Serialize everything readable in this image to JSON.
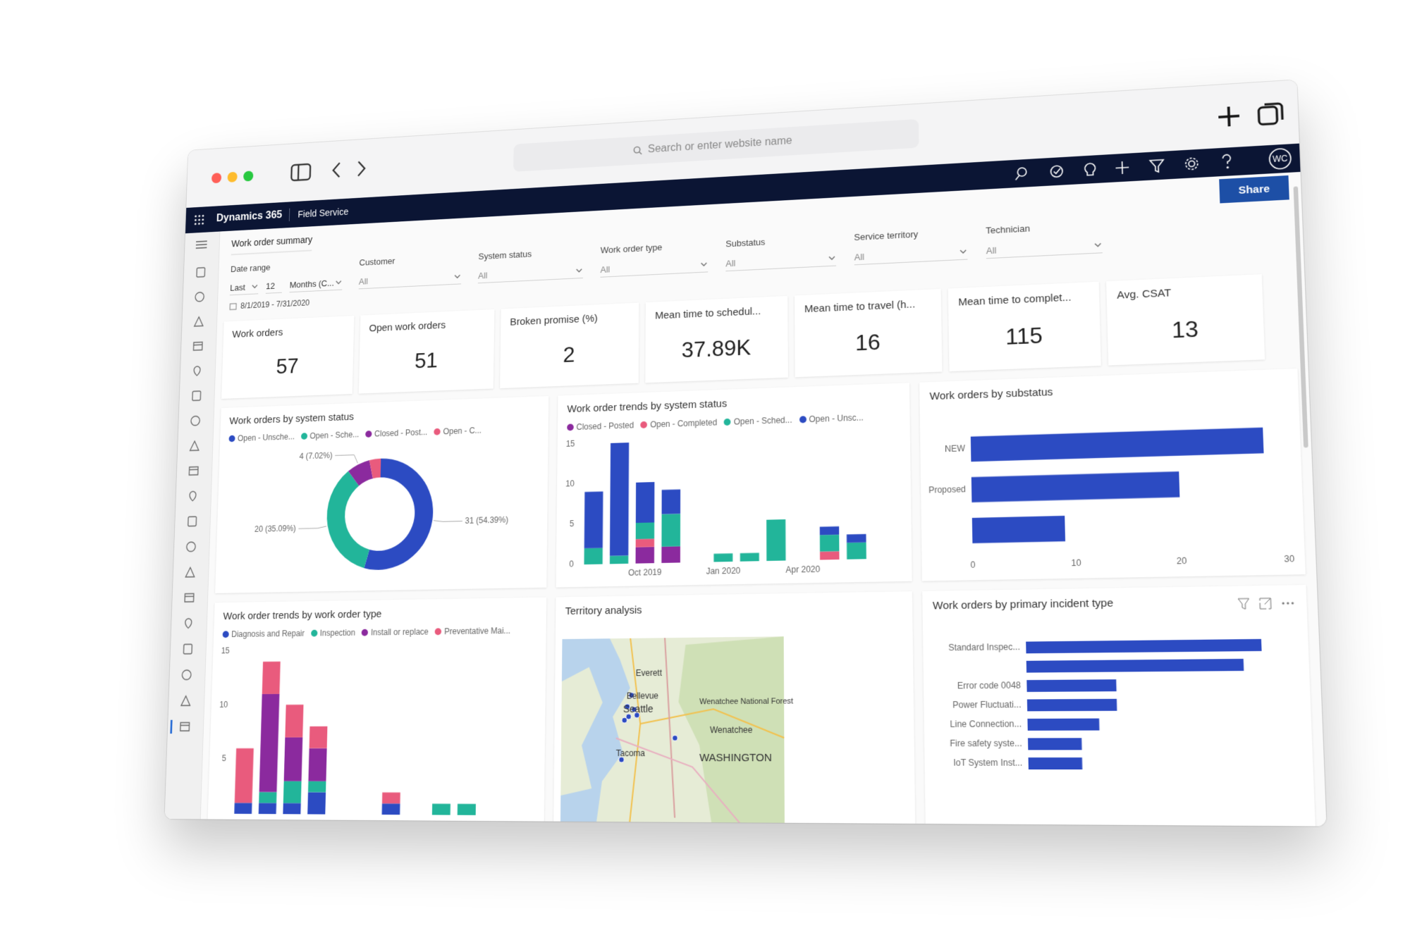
{
  "browser": {
    "search_placeholder": "Search or enter website name"
  },
  "app": {
    "brand": "Dynamics 365",
    "module": "Field Service",
    "user_initials": "WC",
    "share": "Share"
  },
  "page": {
    "tab": "Work order summary"
  },
  "filters": {
    "date_range": {
      "label": "Date range",
      "mode": "Last",
      "count": 12,
      "unit": "Months (C...",
      "range": "8/1/2019 - 7/31/2020"
    },
    "dropdowns": [
      {
        "label": "Customer",
        "value": "All"
      },
      {
        "label": "System status",
        "value": "All"
      },
      {
        "label": "Work order type",
        "value": "All"
      },
      {
        "label": "Substatus",
        "value": "All"
      },
      {
        "label": "Service territory",
        "value": "All"
      },
      {
        "label": "Technician",
        "value": "All"
      }
    ]
  },
  "kpis": [
    {
      "label": "Work orders",
      "value": 57
    },
    {
      "label": "Open work orders",
      "value": 51
    },
    {
      "label": "Broken promise (%)",
      "value": 2
    },
    {
      "label": "Mean time to schedul...",
      "value": "37.89K"
    },
    {
      "label": "Mean time to travel (h...",
      "value": 16
    },
    {
      "label": "Mean time to complet...",
      "value": 115
    },
    {
      "label": "Avg. CSAT",
      "value": 13
    }
  ],
  "charts": [
    {
      "type": "donut",
      "title": "Work orders by system status",
      "categories": [
        "Open - Unsche...",
        "Open - Sche...",
        "Closed - Post...",
        "Open - C..."
      ],
      "colors": [
        "#2c4bc2",
        "#22b59a",
        "#8b2a9e",
        "#e95b7d"
      ],
      "values": [
        31,
        20,
        4,
        2
      ],
      "value_labels": [
        "31 (54.39%)",
        "20 (35.09%)",
        "4 (7.02%)",
        null
      ]
    },
    {
      "type": "stacked_bar",
      "title": "Work order trends by system status",
      "categories": [
        null,
        null,
        "Oct 2019",
        null,
        null,
        "Jan 2020",
        null,
        null,
        "Apr 2020",
        null,
        null,
        null
      ],
      "series": [
        {
          "name": "Closed - Posted",
          "color": "#8b2a9e",
          "values": [
            0,
            0,
            2,
            2,
            0,
            0,
            0,
            0,
            0,
            0,
            0,
            0
          ]
        },
        {
          "name": "Open - Completed",
          "color": "#e95b7d",
          "values": [
            0,
            0,
            1,
            0,
            0,
            0,
            0,
            0,
            0,
            1,
            0,
            0
          ]
        },
        {
          "name": "Open - Sched...",
          "color": "#22b59a",
          "values": [
            2,
            1,
            2,
            4,
            0,
            1,
            1,
            5,
            0,
            2,
            2,
            0
          ]
        },
        {
          "name": "Open - Unsc...",
          "color": "#2c4bc2",
          "values": [
            7,
            14,
            5,
            3,
            0,
            0,
            0,
            0,
            0,
            1,
            1,
            0
          ]
        }
      ],
      "ylim": [
        0,
        15
      ],
      "yticks": [
        0,
        5,
        10,
        15
      ]
    },
    {
      "type": "hbar",
      "title": "Work orders by substatus",
      "categories": [
        "NEW",
        "Proposed",
        null
      ],
      "values": [
        28,
        20,
        9
      ],
      "color": "#2c4bc2",
      "xlim": [
        0,
        30
      ],
      "xticks": [
        0,
        10,
        20,
        30
      ]
    },
    {
      "type": "stacked_bar",
      "title": "Work order trends by work order type",
      "categories": [
        null,
        null,
        null,
        null,
        null,
        null,
        null,
        null,
        null,
        null,
        null,
        null
      ],
      "series": [
        {
          "name": "Diagnosis and Repair",
          "color": "#2c4bc2",
          "values": [
            1,
            1,
            1,
            2,
            0,
            0,
            1,
            0,
            0,
            0,
            0,
            0
          ]
        },
        {
          "name": "Inspection",
          "color": "#22b59a",
          "values": [
            0,
            1,
            2,
            1,
            0,
            0,
            0,
            0,
            1,
            1,
            0,
            0
          ]
        },
        {
          "name": "Install or replace",
          "color": "#8b2a9e",
          "values": [
            0,
            9,
            4,
            3,
            0,
            0,
            0,
            0,
            0,
            0,
            0,
            0
          ]
        },
        {
          "name": "Preventative Mai...",
          "color": "#e95b7d",
          "values": [
            5,
            3,
            3,
            2,
            0,
            0,
            1,
            0,
            0,
            0,
            0,
            0
          ]
        }
      ],
      "ylim": [
        0,
        15
      ],
      "yticks": [
        5,
        10,
        15
      ]
    },
    {
      "type": "map",
      "title": "Territory analysis",
      "places": [
        "Everett",
        "Bellevue",
        "Seattle",
        "Tacoma",
        "Wenatchee National Forest",
        "Wenatchee",
        "WASHINGTON"
      ]
    },
    {
      "type": "hbar",
      "title": "Work orders by primary incident type",
      "categories": [
        "Standard Inspec...",
        null,
        "Error code 0048",
        "Power Fluctuati...",
        "Line Connection...",
        "Fire safety syste...",
        "IoT System Inst..."
      ],
      "values": [
        13,
        12,
        5,
        5,
        4,
        3,
        3
      ],
      "color": "#2c4bc2"
    }
  ]
}
